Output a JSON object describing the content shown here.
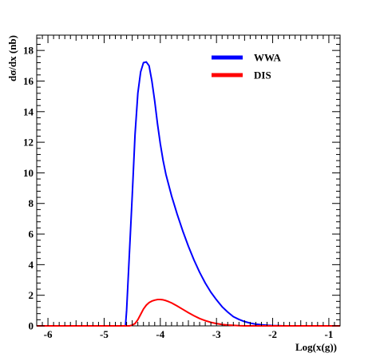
{
  "chart_data": {
    "type": "line",
    "title": "",
    "xlabel": "Log(x(g))",
    "ylabel": "dσ/dx (nb)",
    "xlim": [
      -6.2,
      -0.8
    ],
    "ylim": [
      0,
      19
    ],
    "x_ticks": [
      {
        "value": -6,
        "label": "-6"
      },
      {
        "value": -5,
        "label": "-5"
      },
      {
        "value": -4,
        "label": "-4"
      },
      {
        "value": -3,
        "label": "-3"
      },
      {
        "value": -2,
        "label": "-2"
      },
      {
        "value": -1,
        "label": "-1"
      }
    ],
    "y_ticks": [
      {
        "value": 0,
        "label": "0"
      },
      {
        "value": 2,
        "label": "2"
      },
      {
        "value": 4,
        "label": "4"
      },
      {
        "value": 6,
        "label": "6"
      },
      {
        "value": 8,
        "label": "8"
      },
      {
        "value": 10,
        "label": "10"
      },
      {
        "value": 12,
        "label": "12"
      },
      {
        "value": 14,
        "label": "14"
      },
      {
        "value": 16,
        "label": "16"
      },
      {
        "value": 18,
        "label": "18"
      }
    ],
    "grid": false,
    "legend_position": "top-right",
    "series": [
      {
        "name": "WWA",
        "color": "#0000ff",
        "x": [
          -6.2,
          -4.62,
          -4.6,
          -4.56,
          -4.5,
          -4.45,
          -4.4,
          -4.35,
          -4.3,
          -4.25,
          -4.2,
          -4.15,
          -4.1,
          -4.05,
          -4.0,
          -3.95,
          -3.9,
          -3.8,
          -3.7,
          -3.6,
          -3.5,
          -3.4,
          -3.3,
          -3.2,
          -3.1,
          -3.0,
          -2.9,
          -2.8,
          -2.7,
          -2.6,
          -2.5,
          -2.4,
          -2.3,
          -2.2,
          -2.1,
          -2.0,
          -1.9,
          -1.8,
          -0.8
        ],
        "y": [
          0,
          0,
          1.0,
          4.0,
          8.5,
          12.5,
          15.2,
          16.6,
          17.2,
          17.25,
          17.0,
          16.0,
          14.7,
          13.2,
          11.9,
          10.8,
          9.9,
          8.5,
          7.3,
          6.2,
          5.2,
          4.3,
          3.5,
          2.8,
          2.2,
          1.7,
          1.25,
          0.9,
          0.6,
          0.42,
          0.28,
          0.18,
          0.11,
          0.07,
          0.04,
          0.02,
          0.01,
          0.0,
          0
        ]
      },
      {
        "name": "DIS",
        "color": "#ff0000",
        "x": [
          -6.2,
          -4.55,
          -4.5,
          -4.45,
          -4.4,
          -4.35,
          -4.3,
          -4.25,
          -4.2,
          -4.15,
          -4.1,
          -4.05,
          -4.0,
          -3.95,
          -3.9,
          -3.85,
          -3.8,
          -3.7,
          -3.6,
          -3.5,
          -3.4,
          -3.3,
          -3.2,
          -3.1,
          -3.0,
          -2.9,
          -2.8,
          -2.7,
          -2.6,
          -2.5,
          -2.4,
          -0.8
        ],
        "y": [
          0,
          0,
          0.05,
          0.15,
          0.4,
          0.75,
          1.1,
          1.35,
          1.52,
          1.62,
          1.68,
          1.72,
          1.72,
          1.7,
          1.65,
          1.58,
          1.5,
          1.3,
          1.08,
          0.86,
          0.66,
          0.48,
          0.34,
          0.23,
          0.15,
          0.09,
          0.05,
          0.03,
          0.01,
          0.0,
          0.0,
          0
        ]
      }
    ]
  }
}
